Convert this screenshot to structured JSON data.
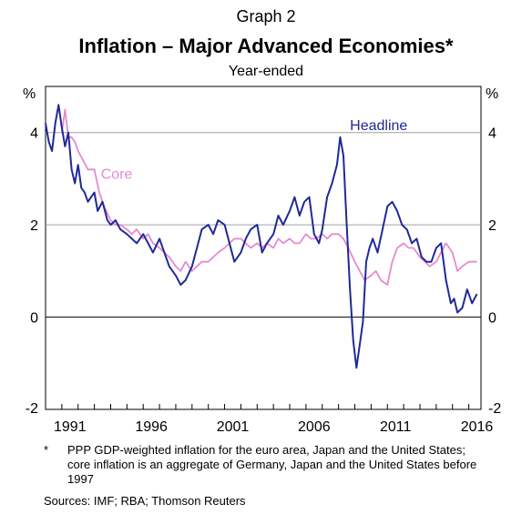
{
  "header": {
    "graph_number": "Graph 2",
    "title": "Inflation – Major Advanced Economies*",
    "subtitle": "Year-ended"
  },
  "footnote": {
    "marker": "*",
    "text": "PPP GDP-weighted inflation for the euro area, Japan and the United States; core inflation is an aggregate of Germany, Japan and the United States before 1997"
  },
  "sources": "Sources:  IMF; RBA; Thomson Reuters",
  "colors": {
    "headline": "#1f2a96",
    "core": "#e58ad0",
    "gridline": "#a0a0a0",
    "zero_line": "#000000"
  },
  "chart_data": {
    "type": "line",
    "ylabel_left": "%",
    "ylabel_right": "%",
    "ylim": [
      -2,
      5
    ],
    "yticks": [
      -2,
      0,
      2,
      4
    ],
    "xlim": [
      1990.0,
      2016.75
    ],
    "xticks": [
      1991,
      1996,
      2001,
      2006,
      2011,
      2016
    ],
    "grid": "horizontal",
    "annotations": [
      {
        "text": "Headline",
        "series": "Headline"
      },
      {
        "text": "Core",
        "series": "Core"
      }
    ],
    "series": [
      {
        "name": "Headline",
        "color": "#1f2a96",
        "x": [
          1990.0,
          1990.2,
          1990.4,
          1990.6,
          1990.8,
          1991.0,
          1991.2,
          1991.4,
          1991.6,
          1991.8,
          1992.0,
          1992.2,
          1992.4,
          1992.6,
          1992.8,
          1993.0,
          1993.2,
          1993.5,
          1993.8,
          1994.0,
          1994.3,
          1994.6,
          1995.0,
          1995.3,
          1995.6,
          1996.0,
          1996.3,
          1996.6,
          1997.0,
          1997.3,
          1997.6,
          1998.0,
          1998.3,
          1998.6,
          1999.0,
          1999.3,
          1999.6,
          2000.0,
          2000.3,
          2000.6,
          2001.0,
          2001.3,
          2001.6,
          2002.0,
          2002.3,
          2002.6,
          2003.0,
          2003.3,
          2003.6,
          2004.0,
          2004.3,
          2004.6,
          2005.0,
          2005.3,
          2005.6,
          2005.9,
          2006.2,
          2006.5,
          2006.8,
          2007.0,
          2007.3,
          2007.6,
          2007.9,
          2008.1,
          2008.3,
          2008.5,
          2008.7,
          2008.9,
          2009.1,
          2009.3,
          2009.5,
          2009.7,
          2009.9,
          2010.1,
          2010.4,
          2010.7,
          2011.0,
          2011.3,
          2011.6,
          2011.9,
          2012.2,
          2012.5,
          2012.8,
          2013.1,
          2013.4,
          2013.7,
          2014.0,
          2014.3,
          2014.6,
          2014.9,
          2015.1,
          2015.3,
          2015.6,
          2015.9,
          2016.2,
          2016.5
        ],
        "y": [
          4.2,
          3.8,
          3.6,
          4.2,
          4.6,
          4.1,
          3.7,
          4.0,
          3.2,
          2.9,
          3.3,
          2.8,
          2.7,
          2.5,
          2.6,
          2.7,
          2.3,
          2.5,
          2.1,
          2.0,
          2.1,
          1.9,
          1.8,
          1.7,
          1.6,
          1.8,
          1.6,
          1.4,
          1.7,
          1.4,
          1.1,
          0.9,
          0.7,
          0.8,
          1.1,
          1.5,
          1.9,
          2.0,
          1.8,
          2.1,
          2.0,
          1.6,
          1.2,
          1.4,
          1.7,
          1.9,
          2.0,
          1.4,
          1.6,
          1.8,
          2.2,
          2.0,
          2.3,
          2.6,
          2.2,
          2.5,
          2.6,
          1.8,
          1.6,
          1.9,
          2.6,
          2.9,
          3.3,
          3.9,
          3.5,
          2.0,
          0.6,
          -0.5,
          -1.1,
          -0.6,
          -0.1,
          1.2,
          1.5,
          1.7,
          1.4,
          1.9,
          2.4,
          2.5,
          2.3,
          2.0,
          1.9,
          1.6,
          1.7,
          1.3,
          1.2,
          1.2,
          1.5,
          1.6,
          0.8,
          0.3,
          0.4,
          0.1,
          0.2,
          0.6,
          0.3,
          0.5
        ]
      },
      {
        "name": "Core",
        "color": "#e58ad0",
        "x": [
          1991.0,
          1991.2,
          1991.4,
          1991.6,
          1991.8,
          1992.0,
          1992.3,
          1992.6,
          1993.0,
          1993.3,
          1993.6,
          1994.0,
          1994.3,
          1994.6,
          1995.0,
          1995.3,
          1995.6,
          1996.0,
          1996.3,
          1996.6,
          1997.0,
          1997.3,
          1997.6,
          1998.0,
          1998.3,
          1998.6,
          1999.0,
          1999.3,
          1999.6,
          2000.0,
          2000.3,
          2000.6,
          2001.0,
          2001.3,
          2001.6,
          2002.0,
          2002.3,
          2002.6,
          2003.0,
          2003.3,
          2003.6,
          2004.0,
          2004.3,
          2004.6,
          2005.0,
          2005.3,
          2005.6,
          2006.0,
          2006.3,
          2006.6,
          2007.0,
          2007.3,
          2007.6,
          2008.0,
          2008.3,
          2008.6,
          2009.0,
          2009.3,
          2009.6,
          2010.0,
          2010.3,
          2010.6,
          2011.0,
          2011.3,
          2011.6,
          2012.0,
          2012.3,
          2012.6,
          2013.0,
          2013.3,
          2013.6,
          2014.0,
          2014.3,
          2014.6,
          2015.0,
          2015.3,
          2015.6,
          2016.0,
          2016.5
        ],
        "y": [
          4.0,
          4.5,
          3.9,
          3.9,
          3.8,
          3.6,
          3.4,
          3.2,
          3.2,
          2.7,
          2.4,
          2.1,
          2.0,
          2.0,
          1.9,
          1.8,
          1.9,
          1.7,
          1.8,
          1.6,
          1.5,
          1.4,
          1.3,
          1.1,
          1.0,
          1.2,
          1.0,
          1.1,
          1.2,
          1.2,
          1.3,
          1.4,
          1.5,
          1.6,
          1.7,
          1.7,
          1.6,
          1.5,
          1.6,
          1.5,
          1.6,
          1.5,
          1.7,
          1.6,
          1.7,
          1.6,
          1.6,
          1.8,
          1.7,
          1.7,
          1.8,
          1.7,
          1.8,
          1.8,
          1.7,
          1.5,
          1.2,
          1.0,
          0.8,
          0.9,
          1.0,
          0.8,
          0.7,
          1.2,
          1.5,
          1.6,
          1.5,
          1.5,
          1.3,
          1.2,
          1.1,
          1.2,
          1.4,
          1.6,
          1.4,
          1.0,
          1.1,
          1.2,
          1.2
        ]
      }
    ]
  }
}
